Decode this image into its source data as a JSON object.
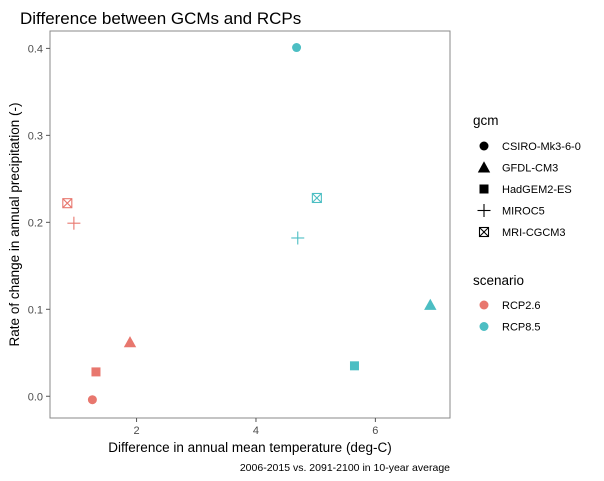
{
  "chart_data": {
    "type": "scatter",
    "title": "Difference between GCMs and RCPs",
    "xlabel": "Difference in annual mean temperature (deg-C)",
    "ylabel": "Rate of change in annual precipitation (-)",
    "caption": "2006-2015 vs. 2091-2100 in 10-year average",
    "xlim": [
      0.55,
      7.25
    ],
    "ylim": [
      -0.025,
      0.42
    ],
    "x_ticks": [
      2,
      4,
      6
    ],
    "y_ticks": [
      0.0,
      0.1,
      0.2,
      0.3,
      0.4
    ],
    "x_tick_labels": [
      "2",
      "4",
      "6"
    ],
    "y_tick_labels": [
      "0.0",
      "0.1",
      "0.2",
      "0.3",
      "0.4"
    ],
    "grid": false,
    "legend_position": "right",
    "points": [
      {
        "gcm": "CSIRO-Mk3-6-0",
        "scenario": "RCP2.6",
        "x": 1.26,
        "y": -0.004
      },
      {
        "gcm": "GFDL-CM3",
        "scenario": "RCP2.6",
        "x": 1.89,
        "y": 0.062
      },
      {
        "gcm": "HadGEM2-ES",
        "scenario": "RCP2.6",
        "x": 1.32,
        "y": 0.028
      },
      {
        "gcm": "MIROC5",
        "scenario": "RCP2.6",
        "x": 0.95,
        "y": 0.199
      },
      {
        "gcm": "MRI-CGCM3",
        "scenario": "RCP2.6",
        "x": 0.84,
        "y": 0.222
      },
      {
        "gcm": "CSIRO-Mk3-6-0",
        "scenario": "RCP8.5",
        "x": 4.68,
        "y": 0.401
      },
      {
        "gcm": "GFDL-CM3",
        "scenario": "RCP8.5",
        "x": 6.92,
        "y": 0.105
      },
      {
        "gcm": "HadGEM2-ES",
        "scenario": "RCP8.5",
        "x": 5.65,
        "y": 0.035
      },
      {
        "gcm": "MIROC5",
        "scenario": "RCP8.5",
        "x": 4.7,
        "y": 0.182
      },
      {
        "gcm": "MRI-CGCM3",
        "scenario": "RCP8.5",
        "x": 5.02,
        "y": 0.228
      }
    ],
    "legend_gcm": {
      "title": "gcm",
      "items": [
        {
          "label": "CSIRO-Mk3-6-0",
          "shape": "circle"
        },
        {
          "label": "GFDL-CM3",
          "shape": "triangle"
        },
        {
          "label": "HadGEM2-ES",
          "shape": "square"
        },
        {
          "label": "MIROC5",
          "shape": "plus"
        },
        {
          "label": "MRI-CGCM3",
          "shape": "boxed-x"
        }
      ]
    },
    "legend_scenario": {
      "title": "scenario",
      "items": [
        {
          "label": "RCP2.6",
          "color": "#E8776E"
        },
        {
          "label": "RCP8.5",
          "color": "#4CBEC3"
        }
      ]
    }
  }
}
